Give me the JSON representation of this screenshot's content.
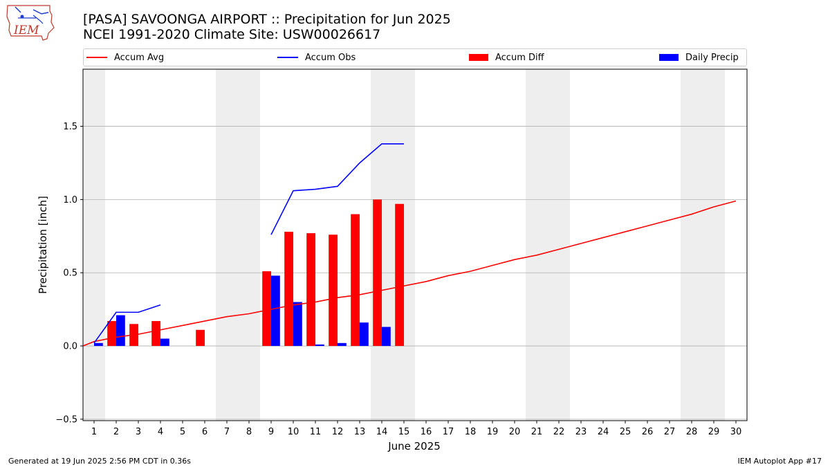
{
  "header": {
    "title_line1": "[PASA] SAVOONGA AIRPORT :: Precipitation for Jun 2025",
    "title_line2": "NCEI 1991-2020 Climate Site: USW00026617",
    "logo_text": "IEM"
  },
  "legend": {
    "items": [
      {
        "label": "Accum Avg",
        "kind": "line",
        "color": "#ff0000"
      },
      {
        "label": "Accum Obs",
        "kind": "line",
        "color": "#0000ff"
      },
      {
        "label": "Accum Diff",
        "kind": "box",
        "color": "#ff0000"
      },
      {
        "label": "Daily Precip",
        "kind": "box",
        "color": "#0000ff"
      }
    ]
  },
  "footer": {
    "left": "Generated at 19 Jun 2025 2:56 PM CDT in 0.36s",
    "right": "IEM Autoplot App #17"
  },
  "chart_data": {
    "type": "bar",
    "xlabel": "June 2025",
    "ylabel": "Precipitation [inch]",
    "xlim": [
      0.5,
      30.5
    ],
    "ylim": [
      -0.51,
      1.89
    ],
    "y_ticks": [
      -0.5,
      0.0,
      0.5,
      1.0,
      1.5
    ],
    "y_tick_labels": [
      "−0.5",
      "0.0",
      "0.5",
      "1.0",
      "1.5"
    ],
    "x_ticks": [
      1,
      2,
      3,
      4,
      5,
      6,
      7,
      8,
      9,
      10,
      11,
      12,
      13,
      14,
      15,
      16,
      17,
      18,
      19,
      20,
      21,
      22,
      23,
      24,
      25,
      26,
      27,
      28,
      29,
      30
    ],
    "grid": "horizontal",
    "weekend_shading_days": [
      1,
      7,
      8,
      14,
      15,
      21,
      22,
      28,
      29
    ],
    "colors": {
      "avg": "#ff0000",
      "obs": "#0000ff",
      "diff": "#ff0000",
      "daily": "#0000ff",
      "shade": "#eeeeee"
    },
    "series": [
      {
        "name": "Accum Avg",
        "kind": "line",
        "x": [
          0.5,
          1,
          2,
          3,
          4,
          5,
          6,
          7,
          8,
          9,
          10,
          11,
          12,
          13,
          14,
          15,
          16,
          17,
          18,
          19,
          20,
          21,
          22,
          23,
          24,
          25,
          26,
          27,
          28,
          29,
          30
        ],
        "values": [
          0.0,
          0.03,
          0.06,
          0.08,
          0.11,
          0.14,
          0.17,
          0.2,
          0.22,
          0.25,
          0.28,
          0.3,
          0.33,
          0.35,
          0.38,
          0.41,
          0.44,
          0.48,
          0.51,
          0.55,
          0.59,
          0.62,
          0.66,
          0.7,
          0.74,
          0.78,
          0.82,
          0.86,
          0.9,
          0.95,
          0.99
        ]
      },
      {
        "name": "Accum Obs",
        "kind": "line",
        "segments": [
          {
            "x": [
              1,
              2,
              3,
              4
            ],
            "values": [
              0.02,
              0.23,
              0.23,
              0.28
            ]
          },
          {
            "x": [
              9,
              10,
              11,
              12,
              13,
              14,
              15
            ],
            "values": [
              0.76,
              1.06,
              1.07,
              1.09,
              1.25,
              1.38,
              1.38
            ]
          }
        ]
      },
      {
        "name": "Accum Diff",
        "kind": "bar",
        "x": [
          2,
          3,
          4,
          6,
          9,
          10,
          11,
          12,
          13,
          14,
          15
        ],
        "values": [
          0.17,
          0.15,
          0.17,
          0.11,
          0.51,
          0.78,
          0.77,
          0.76,
          0.9,
          1.0,
          0.97
        ]
      },
      {
        "name": "Daily Precip",
        "kind": "bar",
        "x": [
          1,
          2,
          4,
          9,
          10,
          11,
          12,
          13,
          14
        ],
        "values": [
          0.02,
          0.21,
          0.05,
          0.48,
          0.3,
          0.01,
          0.02,
          0.16,
          0.13
        ]
      }
    ]
  }
}
